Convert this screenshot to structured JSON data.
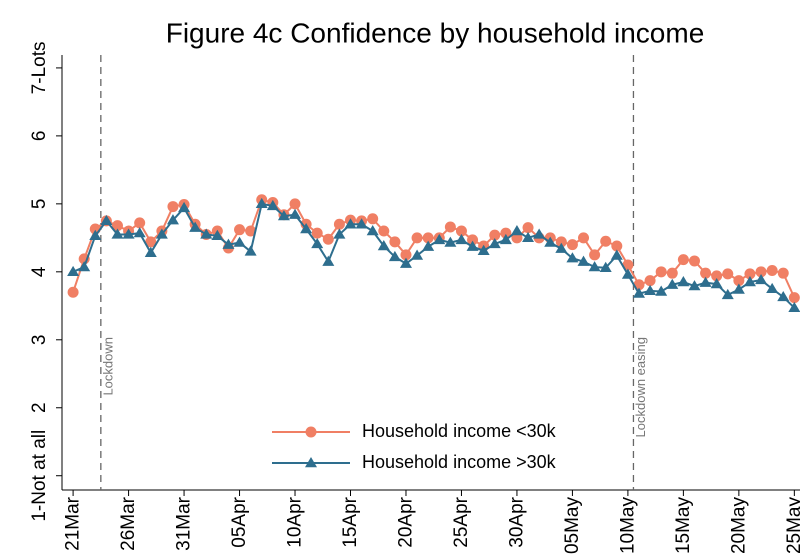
{
  "chart_data": {
    "type": "line",
    "title": "Figure 4c Confidence by household income",
    "categories": [
      "21Mar",
      null,
      null,
      null,
      null,
      "26Mar",
      null,
      null,
      null,
      null,
      "31Mar",
      null,
      null,
      null,
      null,
      "05Apr",
      null,
      null,
      null,
      null,
      "10Apr",
      null,
      null,
      null,
      null,
      "15Apr",
      null,
      null,
      null,
      null,
      "20Apr",
      null,
      null,
      null,
      null,
      "25Apr",
      null,
      null,
      null,
      null,
      "30Apr",
      null,
      null,
      null,
      null,
      "05May",
      null,
      null,
      null,
      null,
      "10May",
      null,
      null,
      null,
      null,
      "15May",
      null,
      null,
      null,
      null,
      "20May",
      null,
      null,
      null,
      null,
      "25May"
    ],
    "series": [
      {
        "name": "Household income <30k",
        "color": "#f07f64",
        "marker": "circle",
        "values": [
          3.7,
          4.19,
          4.63,
          4.75,
          4.68,
          4.6,
          4.72,
          4.44,
          4.6,
          4.96,
          4.99,
          4.7,
          4.55,
          4.6,
          4.35,
          4.62,
          4.6,
          5.06,
          5.02,
          4.84,
          5.0,
          4.7,
          4.57,
          4.48,
          4.7,
          4.76,
          4.75,
          4.78,
          4.6,
          4.44,
          4.25,
          4.5,
          4.5,
          4.5,
          4.66,
          4.6,
          4.47,
          4.38,
          4.54,
          4.57,
          4.5,
          4.65,
          4.5,
          4.5,
          4.44,
          4.4,
          4.5,
          4.25,
          4.45,
          4.38,
          4.1,
          3.81,
          3.87,
          4.0,
          3.98,
          4.18,
          4.16,
          3.98,
          3.94,
          3.97,
          3.87,
          3.97,
          4.0,
          4.02,
          3.98,
          3.62
        ]
      },
      {
        "name": "Household income >30k",
        "color": "#2e6e8e",
        "marker": "triangle",
        "values": [
          4.0,
          4.07,
          4.53,
          4.75,
          4.55,
          4.55,
          4.57,
          4.28,
          4.55,
          4.76,
          4.94,
          4.65,
          4.55,
          4.53,
          4.4,
          4.43,
          4.3,
          5.0,
          4.97,
          4.82,
          4.84,
          4.63,
          4.41,
          4.15,
          4.55,
          4.7,
          4.7,
          4.6,
          4.38,
          4.22,
          4.12,
          4.24,
          4.37,
          4.47,
          4.43,
          4.47,
          4.37,
          4.31,
          4.41,
          4.47,
          4.6,
          4.5,
          4.55,
          4.43,
          4.34,
          4.2,
          4.15,
          4.07,
          4.06,
          4.24,
          3.96,
          3.68,
          3.72,
          3.71,
          3.81,
          3.85,
          3.79,
          3.84,
          3.82,
          3.66,
          3.74,
          3.85,
          3.88,
          3.75,
          3.63,
          3.47
        ]
      }
    ],
    "annotations": [
      {
        "label": "Lockdown",
        "x": 2.5
      },
      {
        "label": "Lockdown easing",
        "x": 50.5
      }
    ],
    "xlim": [
      -1,
      65.6
    ],
    "ylim": [
      0.79,
      7.19
    ],
    "yticks": [
      {
        "value": 1,
        "label": "1-Not at all"
      },
      2,
      3,
      4,
      5,
      6,
      {
        "value": 7,
        "label": "7-Lots"
      }
    ],
    "grid": false
  }
}
